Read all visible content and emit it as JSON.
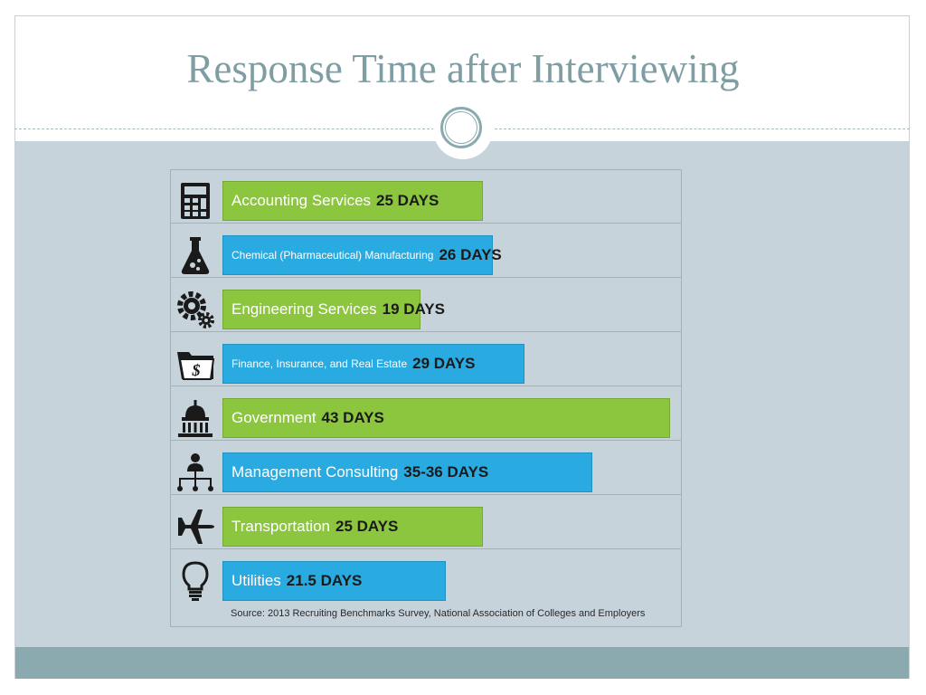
{
  "slide": {
    "title": "Response Time after Interviewing"
  },
  "chart_data": {
    "type": "bar",
    "orientation": "horizontal",
    "title": "Response Time after Interviewing",
    "unit": "DAYS",
    "categories": [
      "Accounting Services",
      "Chemical (Pharmaceutical) Manufacturing",
      "Engineering Services",
      "Finance, Insurance, and Real Estate",
      "Government",
      "Management Consulting",
      "Transportation",
      "Utilities"
    ],
    "value_labels": [
      "25 DAYS",
      "26 DAYS",
      "19 DAYS",
      "29 DAYS",
      "43 DAYS",
      "35-36 DAYS",
      "25 DAYS",
      "21.5 DAYS"
    ],
    "values": [
      25,
      26,
      19,
      29,
      43,
      35.5,
      25,
      21.5
    ],
    "icons": [
      "calculator-icon",
      "flask-icon",
      "gears-icon",
      "money-folder-icon",
      "capitol-icon",
      "org-chart-icon",
      "airplane-icon",
      "light-bulb-icon"
    ],
    "colors": [
      "#8cc63f",
      "#29abe2",
      "#8cc63f",
      "#29abe2",
      "#8cc63f",
      "#29abe2",
      "#8cc63f",
      "#29abe2"
    ],
    "source": "Source: 2013 Recruiting Benchmarks Survey, National Association of Colleges and Employers"
  }
}
